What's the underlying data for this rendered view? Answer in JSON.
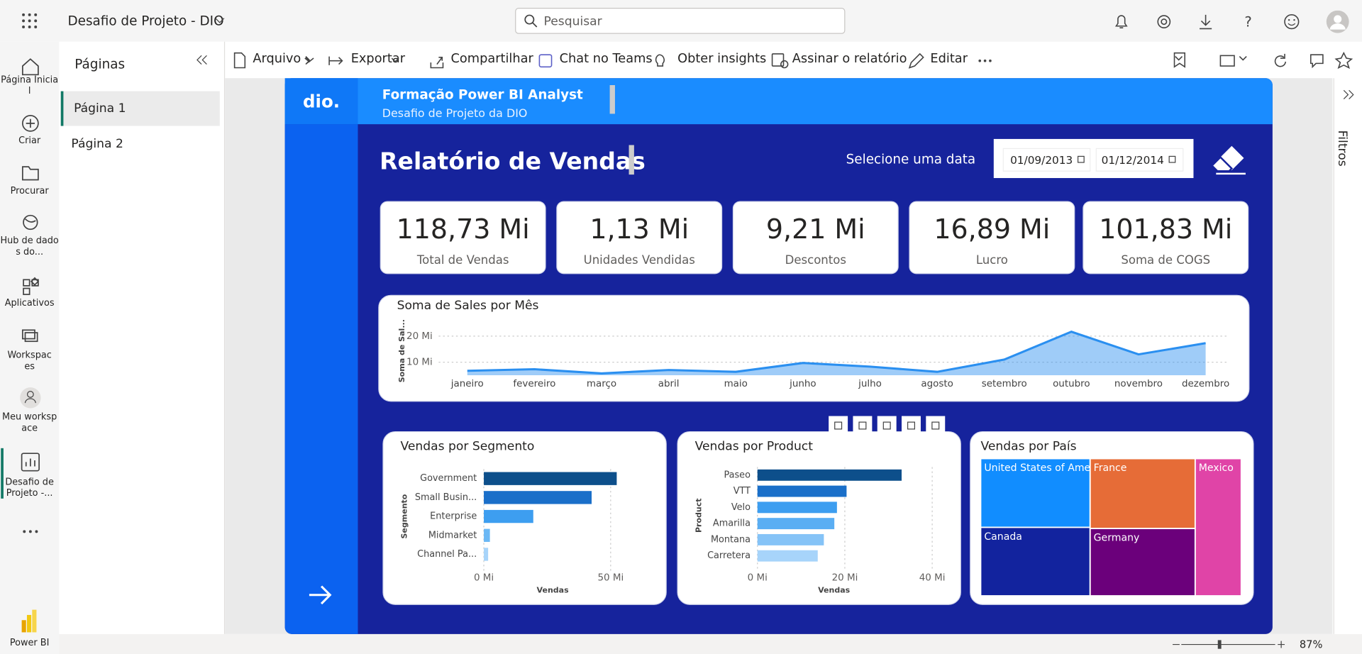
{
  "app": {
    "title": "Desafio de Projeto - DIO",
    "search": "Pesquisar",
    "nav": [
      "Página Inicial",
      "Criar",
      "Procurar",
      "Hub de dados do...",
      "Aplicativos",
      "Workspaces",
      "Meu workspace",
      "Desafio de Projeto -..."
    ],
    "brand": "Power BI"
  },
  "pages": {
    "title": "Páginas",
    "items": [
      "Página 1",
      "Página 2"
    ]
  },
  "toolbar": [
    "Arquivo",
    "Exportar",
    "Compartilhar",
    "Chat no Teams",
    "Obter insights",
    "Assinar o relatório",
    "Editar"
  ],
  "filters": "Filtros",
  "zoom": "87%",
  "report": {
    "logo": "dio.",
    "header_title": "Formação Power BI Analyst",
    "header_subtitle": "Desafio de Projeto da DIO",
    "title": "Relatório de Vendas",
    "date_label": "Selecione uma data",
    "date_start": "01/09/2013",
    "date_end": "01/12/2014",
    "kpis": [
      {
        "value": "118,73 Mi",
        "label": "Total de Vendas"
      },
      {
        "value": "1,13 Mi",
        "label": "Unidades Vendidas"
      },
      {
        "value": "9,21 Mi",
        "label": "Descontos"
      },
      {
        "value": "16,89 Mi",
        "label": "Lucro"
      },
      {
        "value": "101,83 Mi",
        "label": "Soma de COGS"
      }
    ]
  },
  "charts": [
    {
      "type": "line",
      "title": "Soma de Sales por Mês",
      "y_label": "Soma de Sal...",
      "categories": [
        "janeiro",
        "fevereiro",
        "março",
        "abril",
        "maio",
        "junho",
        "julho",
        "agosto",
        "setembro",
        "outubro",
        "novembro",
        "dezembro"
      ],
      "values": [
        6.7,
        7.3,
        5.7,
        7.0,
        6.3,
        9.7,
        8.3,
        6.3,
        11.0,
        21.7,
        13.0,
        17.3
      ],
      "color": "#2a8ff0",
      "ylim": [
        5,
        23
      ],
      "yticks": [
        {
          "value": 10,
          "label": "10 Mi"
        },
        {
          "value": 20,
          "label": "20 Mi"
        }
      ],
      "grid": true
    },
    {
      "type": "hbar",
      "title": "Vendas por Segmento",
      "y_label": "Segmento",
      "x_label": "Vendas",
      "categories": [
        "Government",
        "Small Busin...",
        "Enterprise",
        "Midmarket",
        "Channel Pa..."
      ],
      "values": [
        52.4,
        42.5,
        19.5,
        2.4,
        1.7
      ],
      "colors": [
        "#0d4f8b",
        "#1a6fc9",
        "#3d9ef0",
        "#6bb8f5",
        "#a7d4fa"
      ],
      "xlim": [
        0,
        68
      ],
      "xticks": [
        {
          "value": 0,
          "label": "0 Mi"
        },
        {
          "value": 50,
          "label": "50 Mi"
        }
      ],
      "grid": true
    },
    {
      "type": "hbar",
      "title": "Vendas por Product",
      "y_label": "Product",
      "x_label": "Vendas",
      "categories": [
        "Paseo",
        "VTT",
        "Velo",
        "Amarilla",
        "Montana",
        "Carretera"
      ],
      "values": [
        33.0,
        20.4,
        18.2,
        17.6,
        15.2,
        13.8
      ],
      "colors": [
        "#0d4f8b",
        "#1a6fc9",
        "#3d9ef0",
        "#5aaef3",
        "#85c3f7",
        "#a7d4fa"
      ],
      "xlim": [
        0,
        43
      ],
      "xticks": [
        {
          "value": 0,
          "label": "0 Mi"
        },
        {
          "value": 20,
          "label": "20 Mi"
        },
        {
          "value": 40,
          "label": "40 Mi"
        }
      ],
      "grid": true
    },
    {
      "type": "treemap",
      "title": "Vendas por País",
      "categories": [
        "United States of Ame...",
        "Canada",
        "France",
        "Germany",
        "Mexico"
      ],
      "values": [
        25.0,
        24.9,
        24.4,
        23.5,
        21.0
      ],
      "colors": [
        "#118dff",
        "#12239e",
        "#e66c37",
        "#6b007b",
        "#e044a7"
      ]
    }
  ]
}
